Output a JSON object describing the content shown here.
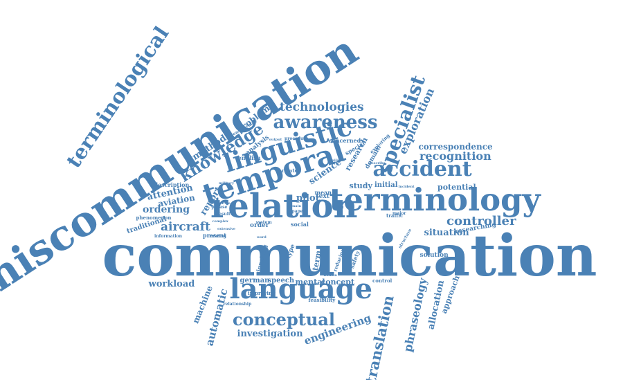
{
  "color": "#4a81b5",
  "words": [
    {
      "text": "communication"
    },
    {
      "text": "miscommunication"
    },
    {
      "text": "terminological"
    },
    {
      "text": "relation"
    },
    {
      "text": "terminology"
    },
    {
      "text": "temporal"
    },
    {
      "text": "language"
    },
    {
      "text": "linguistic"
    },
    {
      "text": "accident"
    },
    {
      "text": "specialist"
    },
    {
      "text": "awareness"
    },
    {
      "text": "conceptual"
    },
    {
      "text": "knowledge"
    },
    {
      "text": "technologies"
    },
    {
      "text": "translation"
    },
    {
      "text": "exploration"
    },
    {
      "text": "controller"
    },
    {
      "text": "recognition"
    },
    {
      "text": "correspondence"
    },
    {
      "text": "phraseology"
    },
    {
      "text": "engineering"
    },
    {
      "text": "allocation"
    },
    {
      "text": "investigation"
    },
    {
      "text": "automatic"
    },
    {
      "text": "aircraft"
    },
    {
      "text": "ordering"
    },
    {
      "text": "attention"
    },
    {
      "text": "method"
    },
    {
      "text": "aviation"
    },
    {
      "text": "report"
    },
    {
      "text": "problem"
    },
    {
      "text": "situation"
    },
    {
      "text": "potential"
    },
    {
      "text": "approach"
    },
    {
      "text": "workload"
    },
    {
      "text": "machine"
    },
    {
      "text": "science"
    },
    {
      "text": "pilot"
    },
    {
      "text": "text"
    },
    {
      "text": "study"
    },
    {
      "text": "initial"
    },
    {
      "text": "german"
    },
    {
      "text": "speech"
    },
    {
      "text": "mental"
    },
    {
      "text": "concept"
    },
    {
      "text": "research"
    },
    {
      "text": "domain"
    },
    {
      "text": "solution"
    },
    {
      "text": "traditional"
    },
    {
      "text": "phenomenon"
    },
    {
      "text": "description"
    },
    {
      "text": "analysis"
    },
    {
      "text": "english"
    },
    {
      "text": "related"
    },
    {
      "text": "concerned"
    },
    {
      "text": "special"
    },
    {
      "text": "exploring"
    },
    {
      "text": "researching"
    },
    {
      "text": "term"
    },
    {
      "text": "type"
    },
    {
      "text": "mean"
    },
    {
      "text": "social"
    },
    {
      "text": "order"
    },
    {
      "text": "present"
    },
    {
      "text": "information"
    },
    {
      "text": "training"
    },
    {
      "text": "signalling"
    },
    {
      "text": "improving"
    },
    {
      "text": "feasibility"
    },
    {
      "text": "relationship"
    },
    {
      "text": "control"
    },
    {
      "text": "traffic"
    },
    {
      "text": "safety"
    },
    {
      "text": "structure"
    },
    {
      "text": "considerable"
    },
    {
      "text": "military"
    },
    {
      "text": "procedure"
    },
    {
      "text": "reducing"
    },
    {
      "text": "system"
    },
    {
      "text": "phrase"
    },
    {
      "text": "result"
    },
    {
      "text": "complex"
    },
    {
      "text": "extensive"
    },
    {
      "text": "cognitive"
    },
    {
      "text": "paper"
    },
    {
      "text": "human"
    },
    {
      "text": "establish"
    },
    {
      "text": "describe"
    },
    {
      "text": "available"
    },
    {
      "text": "incident"
    },
    {
      "text": "major"
    },
    {
      "text": "main"
    },
    {
      "text": "word"
    },
    {
      "text": "output"
    }
  ]
}
